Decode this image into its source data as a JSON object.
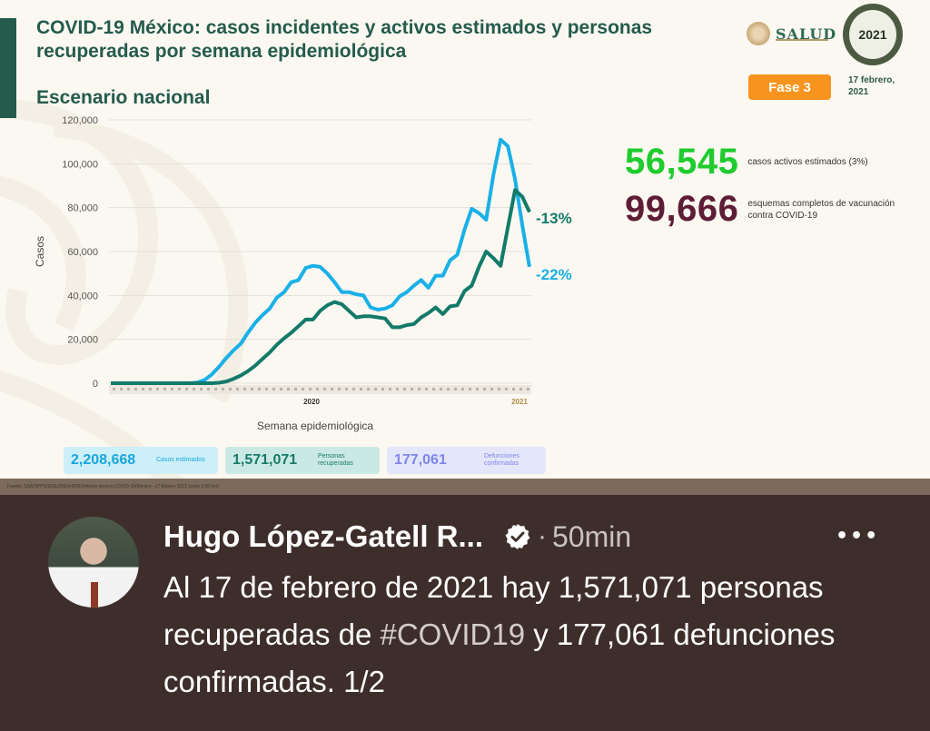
{
  "slide": {
    "title": "COVID-19 México: casos incidentes y activos estimados y personas recuperadas por semana epidemiológica",
    "subtitle": "Escenario nacional",
    "logo_text": "SALUD",
    "badge_logo_text": "2021",
    "phase_badge": "Fase 3",
    "date": "17 febrero, 2021",
    "kpis": [
      {
        "value": "56,545",
        "label": "casos activos estimados (3%)",
        "color": "#1fcc2e"
      },
      {
        "value": "99,666",
        "label": "esquemas completos de vacunación contra COVID-19",
        "color": "#5e1d36"
      }
    ],
    "summary": [
      {
        "value": "2,208,668",
        "label": "Casos estimados",
        "color": "#1aa6dc"
      },
      {
        "value": "1,571,071",
        "label": "Personas recuperadas",
        "color": "#187a6a"
      },
      {
        "value": "177,061",
        "label": "Defunciones confirmadas",
        "color": "#7f86e8"
      }
    ],
    "source_note": "Fuente: SSA/SPPS/DGE/DIE/InDRE/Informe técnico.COVID-19/México– 17 febrero 2021 (corte 9:00 hrs)"
  },
  "chart_data": {
    "type": "line",
    "title": "COVID-19 México: casos incidentes y activos estimados y personas recuperadas por semana epidemiológica",
    "subtitle": "Escenario nacional",
    "xlabel": "Semana epidemiológica",
    "ylabel": "Casos",
    "ylim": [
      0,
      120000
    ],
    "yticks": [
      "0",
      "20,000",
      "40,000",
      "60,000",
      "80,000",
      "100,000",
      "120,000"
    ],
    "x_groups": [
      "2020",
      "2021"
    ],
    "grid": true,
    "x": [
      1,
      2,
      3,
      4,
      5,
      6,
      7,
      8,
      9,
      10,
      11,
      12,
      13,
      14,
      15,
      16,
      17,
      18,
      19,
      20,
      21,
      22,
      23,
      24,
      25,
      26,
      27,
      28,
      29,
      30,
      31,
      32,
      33,
      34,
      35,
      36,
      37,
      38,
      39,
      40,
      41,
      42,
      43,
      44,
      45,
      46,
      47,
      48,
      49,
      50,
      51,
      52,
      53,
      54,
      55,
      56,
      57,
      58,
      59,
      60,
      61,
      62
    ],
    "series": [
      {
        "name": "Casos estimados",
        "color": "#1ab0e8",
        "end_annotation": "-22%",
        "values": [
          0,
          0,
          0,
          0,
          0,
          0,
          0,
          0,
          0,
          0,
          0,
          0,
          300,
          1500,
          4000,
          7500,
          11500,
          15000,
          18000,
          23000,
          27500,
          31000,
          34000,
          39000,
          41500,
          46000,
          47000,
          52500,
          53500,
          53000,
          50000,
          46000,
          41500,
          41500,
          40500,
          40000,
          34500,
          33500,
          34000,
          35500,
          39500,
          41500,
          44500,
          47000,
          43500,
          49000,
          49000,
          56000,
          58500,
          70000,
          79500,
          77500,
          74500,
          95000,
          111000,
          108000,
          93000,
          72000,
          53000
        ]
      },
      {
        "name": "Personas recuperadas",
        "color": "#137a6a",
        "end_annotation": "-13%",
        "values": [
          0,
          0,
          0,
          0,
          0,
          0,
          0,
          0,
          0,
          0,
          0,
          0,
          0,
          0,
          0,
          200,
          800,
          2000,
          3500,
          5500,
          8000,
          11000,
          14000,
          17500,
          20500,
          23000,
          26000,
          29000,
          29000,
          33000,
          35500,
          37000,
          36000,
          33000,
          30000,
          30500,
          30500,
          30000,
          29500,
          25500,
          25500,
          26500,
          27000,
          30000,
          32000,
          34500,
          31500,
          35000,
          35500,
          42000,
          44500,
          53000,
          60000,
          57000,
          53500,
          71000,
          88000,
          85000,
          78000
        ]
      }
    ]
  },
  "tweet": {
    "author": "Hugo López-Gatell R...",
    "verified": true,
    "separator": "·",
    "time": "50min",
    "more_icon": "•••",
    "text_before_hashtag": "Al 17 de febrero de 2021 hay 1,571,071 personas recuperadas de ",
    "hashtag": "#COVID19",
    "text_after_hashtag": " y 177,061 defunciones confirmadas. 1/2"
  }
}
